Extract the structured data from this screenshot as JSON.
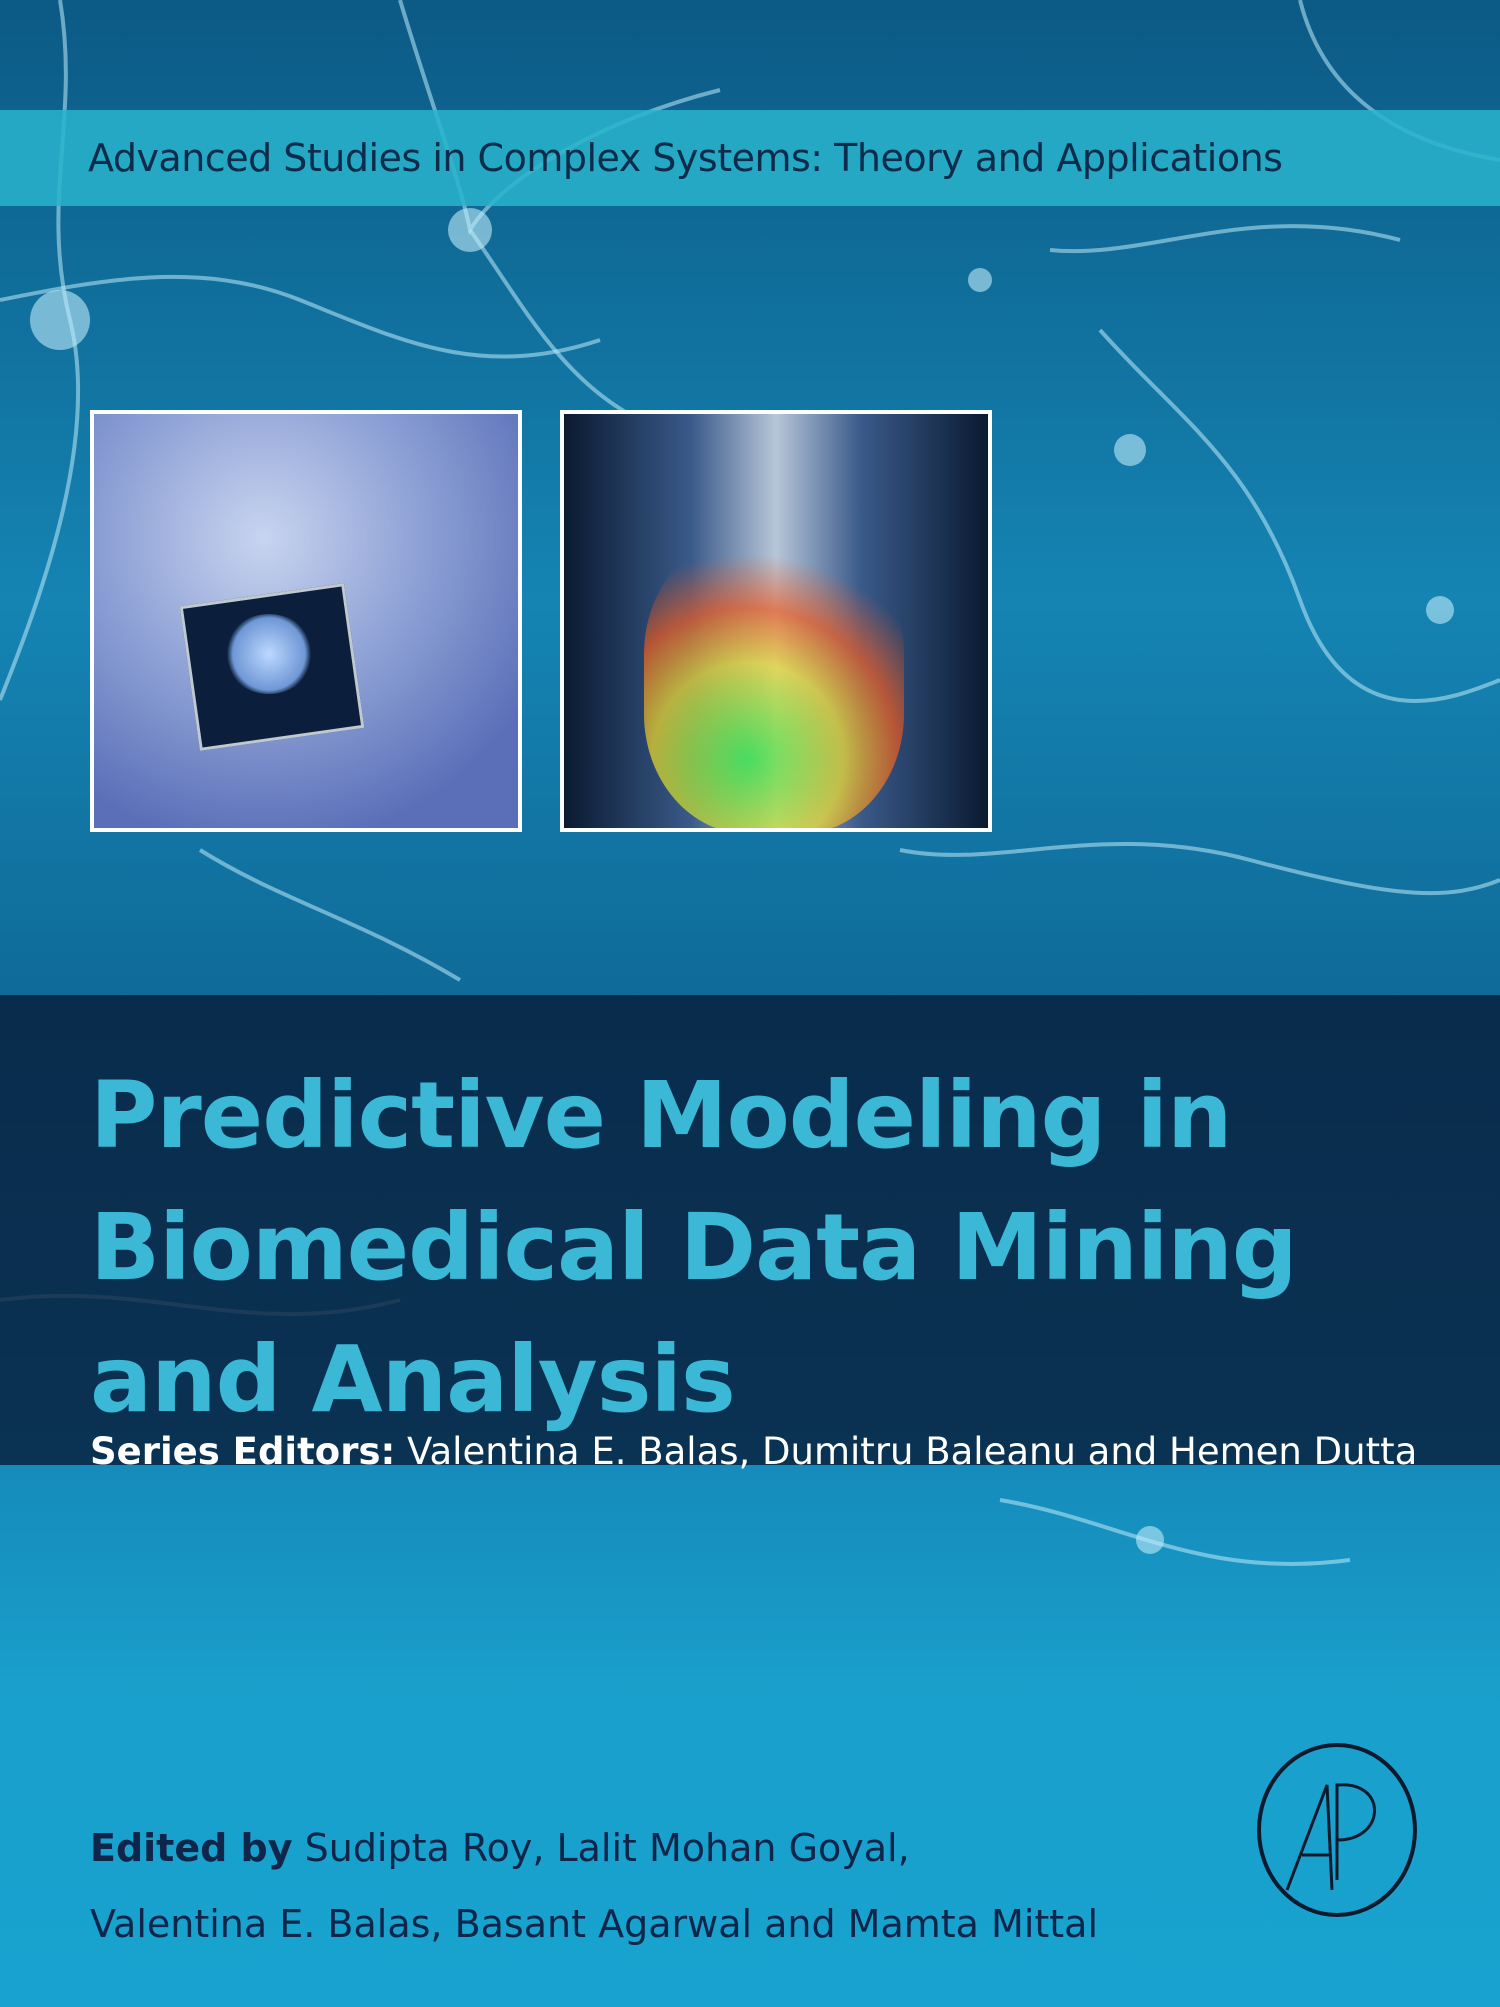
{
  "series": {
    "title": "Advanced Studies in Complex Systems: Theory and Applications"
  },
  "title": {
    "lines": [
      "Predictive Modeling in",
      "Biomedical Data Mining",
      "and Analysis"
    ]
  },
  "series_editors": {
    "label": "Series Editors:",
    "names": " Valentina E. Balas, Dumitru Baleanu and Hemen Dutta"
  },
  "edited_by": {
    "label": "Edited by",
    "line1": " Sudipta Roy, Lalit Mohan Goyal,",
    "line2": "Valentina E. Balas, Basant Agarwal and Mamta Mittal"
  },
  "publisher_logo": {
    "text": "AP",
    "color": "#0d1a2e"
  },
  "colors": {
    "title": "#3ab8d6",
    "band": "#081e3c",
    "series_band": "#28b4cd"
  }
}
